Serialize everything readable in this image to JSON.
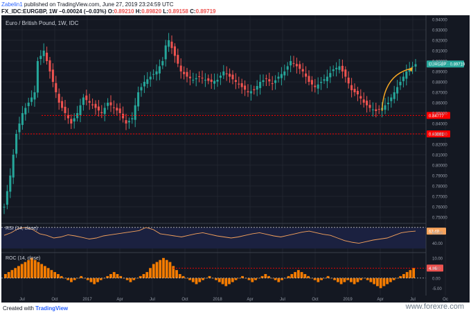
{
  "header": {
    "user": "Zabelin1",
    "published": "published on TradingView.com, June 27, 2019 23:24:59 UTC",
    "symbol": "FX_IDC:EURGBP, 1W",
    "change": "−0.00024 (−0.03%)",
    "ohlc": {
      "o_label": "O:",
      "o": "0.89210",
      "h_label": "H:",
      "h": "0.89820",
      "l_label": "L:",
      "l": "0.89158",
      "c_label": "C:",
      "c": "0.89719"
    }
  },
  "panel_title": "Euro / British Pound, 1W, IDC",
  "rsi_label": "RSI (14, close)",
  "roc_label": "ROC (14, close)",
  "footer": {
    "created": "Created with",
    "brand": "TradingView",
    "site": "www.forexre.com"
  },
  "colors": {
    "bg": "#141822",
    "up": "#26a69a",
    "down": "#ef5350",
    "level": "#ff0000",
    "rsi": "#f7a35c",
    "roc": "#f57c00",
    "arrow": "#f5a623"
  },
  "chart_data": {
    "type": "candlestick",
    "title": "Euro / British Pound, 1W, IDC",
    "price_axis": {
      "ticks": [
        0.94,
        0.93,
        0.92,
        0.91,
        0.9,
        0.89,
        0.88,
        0.87,
        0.86,
        0.85,
        0.84,
        0.83,
        0.82,
        0.81,
        0.8,
        0.79,
        0.78,
        0.77,
        0.76,
        0.75
      ],
      "tick_labels": [
        "0.94000",
        "0.93000",
        "0.92000",
        "0.91000",
        "0.90000",
        "0.89000",
        "0.88000",
        "0.87000",
        "0.86000",
        "0.85000",
        "0.84000",
        "0.83000",
        "0.82000",
        "0.81000",
        "0.80000",
        "0.79000",
        "0.78000",
        "0.77000",
        "0.76000",
        "0.75000"
      ],
      "range": [
        0.744,
        0.944
      ]
    },
    "time_axis": {
      "labels": [
        "Jul",
        "Oct",
        "2017",
        "Apr",
        "Jul",
        "Oct",
        "2018",
        "Apr",
        "Jul",
        "Oct",
        "2019",
        "Apr",
        "Jul",
        "Oc"
      ]
    },
    "current_price": {
      "label": "EURGBP",
      "value": "0.89719",
      "level": 0.89719
    },
    "levels": [
      {
        "value": 0.84777,
        "label": "0.84777"
      },
      {
        "value": 0.83001,
        "label": "0.83001"
      }
    ],
    "close_path": [
      [
        0,
        0.76
      ],
      [
        2,
        0.79
      ],
      [
        4,
        0.83
      ],
      [
        6,
        0.85
      ],
      [
        8,
        0.86
      ],
      [
        10,
        0.87
      ],
      [
        11,
        0.9
      ],
      [
        13,
        0.91
      ],
      [
        15,
        0.89
      ],
      [
        17,
        0.87
      ],
      [
        18,
        0.86
      ],
      [
        20,
        0.85
      ],
      [
        22,
        0.84
      ],
      [
        24,
        0.85
      ],
      [
        26,
        0.865
      ],
      [
        28,
        0.86
      ],
      [
        30,
        0.855
      ],
      [
        32,
        0.85
      ],
      [
        34,
        0.86
      ],
      [
        36,
        0.855
      ],
      [
        38,
        0.85
      ],
      [
        40,
        0.84
      ],
      [
        42,
        0.845
      ],
      [
        44,
        0.87
      ],
      [
        46,
        0.88
      ],
      [
        48,
        0.885
      ],
      [
        50,
        0.89
      ],
      [
        52,
        0.9
      ],
      [
        53,
        0.915
      ],
      [
        54,
        0.92
      ],
      [
        56,
        0.905
      ],
      [
        58,
        0.89
      ],
      [
        60,
        0.885
      ],
      [
        62,
        0.882
      ],
      [
        64,
        0.885
      ],
      [
        66,
        0.882
      ],
      [
        68,
        0.88
      ],
      [
        70,
        0.882
      ],
      [
        72,
        0.89
      ],
      [
        74,
        0.885
      ],
      [
        76,
        0.88
      ],
      [
        78,
        0.875
      ],
      [
        80,
        0.87
      ],
      [
        82,
        0.872
      ],
      [
        84,
        0.88
      ],
      [
        86,
        0.883
      ],
      [
        88,
        0.878
      ],
      [
        90,
        0.885
      ],
      [
        92,
        0.89
      ],
      [
        94,
        0.9
      ],
      [
        96,
        0.895
      ],
      [
        98,
        0.89
      ],
      [
        100,
        0.88
      ],
      [
        102,
        0.875
      ],
      [
        104,
        0.88
      ],
      [
        106,
        0.885
      ],
      [
        108,
        0.892
      ],
      [
        110,
        0.895
      ],
      [
        112,
        0.885
      ],
      [
        114,
        0.872
      ],
      [
        116,
        0.868
      ],
      [
        118,
        0.86
      ],
      [
        120,
        0.855
      ],
      [
        122,
        0.852
      ],
      [
        124,
        0.855
      ],
      [
        126,
        0.86
      ],
      [
        128,
        0.87
      ],
      [
        130,
        0.88
      ],
      [
        132,
        0.89
      ],
      [
        134,
        0.895
      ],
      [
        135,
        0.897
      ]
    ],
    "annotations": [
      {
        "type": "arrow",
        "from": [
          124,
          0.852
        ],
        "to": [
          134,
          0.893
        ]
      }
    ],
    "rsi": {
      "label": "RSI (14, close)",
      "value": "63.49",
      "axis_labels": [
        "60.00",
        "40.00"
      ],
      "ticks": [
        60,
        40
      ],
      "range": [
        25,
        75
      ],
      "overbought": 70,
      "values": [
        55,
        60,
        68,
        70,
        66,
        58,
        55,
        50,
        52,
        56,
        54,
        51,
        48,
        50,
        54,
        56,
        58,
        60,
        62,
        64,
        70,
        66,
        58,
        56,
        54,
        52,
        55,
        58,
        60,
        57,
        54,
        52,
        50,
        52,
        55,
        58,
        60,
        57,
        54,
        52,
        55,
        58,
        61,
        63,
        60,
        57,
        55,
        50,
        45,
        42,
        40,
        43,
        46,
        48,
        50,
        55,
        60,
        62,
        63
      ]
    },
    "roc": {
      "label": "ROC (14, close)",
      "value": "4.96",
      "axis_labels": [
        "10.00",
        "5.00",
        "0.00",
        "-5.00"
      ],
      "ticks": [
        10,
        5,
        0,
        -5
      ],
      "range": [
        -8,
        12
      ],
      "zero": 0,
      "level": 4.96,
      "values": [
        2,
        3,
        4,
        5,
        6,
        7,
        8,
        9,
        10,
        9,
        8,
        7,
        6,
        5,
        4,
        3,
        2,
        1,
        0,
        -1,
        -2,
        -1,
        0,
        1,
        0,
        -1,
        -2,
        -3,
        -2,
        -1,
        0,
        1,
        2,
        3,
        2,
        1,
        0,
        -1,
        -2,
        -1,
        0,
        1,
        2,
        3,
        5,
        7,
        8,
        9,
        10,
        9,
        8,
        6,
        4,
        2,
        1,
        0,
        -1,
        -2,
        -3,
        -2,
        -1,
        0,
        1,
        0,
        -1,
        -2,
        -3,
        -4,
        -3,
        -2,
        -1,
        0,
        1,
        0,
        -1,
        -2,
        -1,
        0,
        1,
        2,
        1,
        0,
        -1,
        -2,
        -1,
        0,
        1,
        2,
        3,
        4,
        3,
        2,
        1,
        0,
        -1,
        -2,
        -1,
        0,
        1,
        0,
        -1,
        -2,
        -3,
        -2,
        -1,
        -2,
        -3,
        -2,
        -1,
        0,
        -1,
        -2,
        -3,
        -4,
        -5,
        -4,
        -3,
        -2,
        -1,
        0,
        1,
        2,
        3,
        4,
        5
      ]
    }
  }
}
